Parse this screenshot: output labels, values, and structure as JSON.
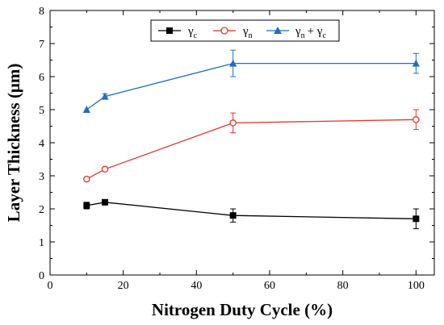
{
  "chart_data": {
    "type": "line",
    "xlabel": "Nitrogen Duty Cycle (%)",
    "ylabel": "Layer Thickness (μm)",
    "xlim": [
      0,
      105
    ],
    "ylim": [
      0,
      8
    ],
    "xticks": [
      0,
      20,
      40,
      60,
      80,
      100
    ],
    "yticks": [
      0,
      1,
      2,
      3,
      4,
      5,
      6,
      7,
      8
    ],
    "grid": false,
    "legend_position": "top-right",
    "series": [
      {
        "name": "γc",
        "legend_main": "γ",
        "legend_sub": "c",
        "color": "#000000",
        "marker": "square",
        "x": [
          10,
          15,
          50,
          100
        ],
        "y": [
          2.1,
          2.2,
          1.8,
          1.7
        ],
        "err": [
          0.1,
          0.05,
          0.2,
          0.3
        ]
      },
      {
        "name": "γn",
        "legend_main": "γ",
        "legend_sub": "n",
        "color": "#e8332f",
        "marker": "circle",
        "x": [
          10,
          15,
          50,
          100
        ],
        "y": [
          2.9,
          3.2,
          4.6,
          4.7
        ],
        "err": [
          0.05,
          0.05,
          0.3,
          0.3
        ]
      },
      {
        "name": "γn + γc",
        "legend_main": "γ",
        "legend_sub": "n",
        "legend_main2": "+ γ",
        "legend_sub2": "c",
        "color": "#1f6fc0",
        "marker": "triangle",
        "x": [
          10,
          15,
          50,
          100
        ],
        "y": [
          5.0,
          5.4,
          6.4,
          6.4
        ],
        "err": [
          0.0,
          0.08,
          0.4,
          0.3
        ]
      }
    ]
  }
}
